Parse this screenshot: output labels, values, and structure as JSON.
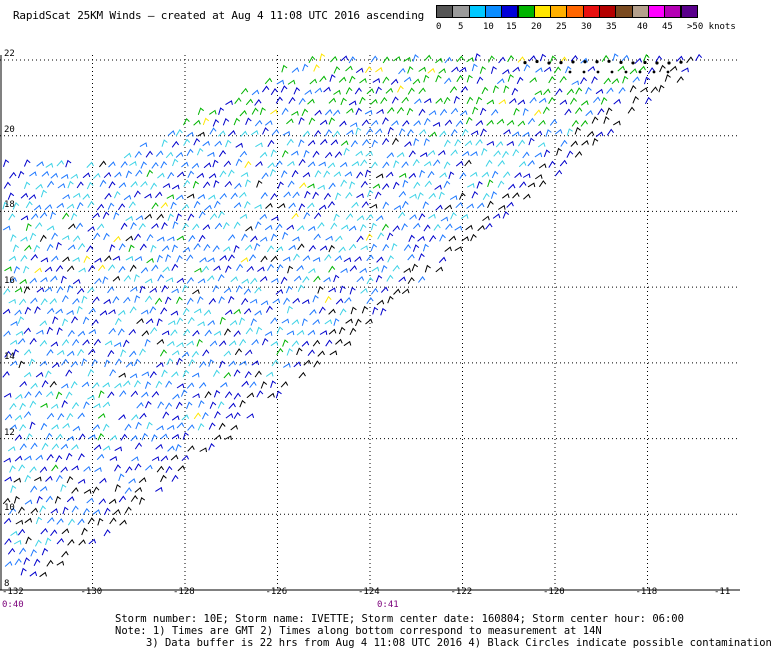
{
  "title": "RapidScat 25KM Winds — created at Aug  4 11:08 UTC 2016 ascending",
  "colorbar": {
    "segments": [
      {
        "color": "#555555"
      },
      {
        "color": "#9a9a9a"
      },
      {
        "color": "#00c8ff"
      },
      {
        "color": "#0a8cff"
      },
      {
        "color": "#0000d8"
      },
      {
        "color": "#00b400"
      },
      {
        "color": "#ffe600"
      },
      {
        "color": "#ffb000"
      },
      {
        "color": "#ff6600"
      },
      {
        "color": "#e81010"
      },
      {
        "color": "#b40000"
      },
      {
        "color": "#7a4a20"
      },
      {
        "color": "#b4a08c"
      },
      {
        "color": "#ff00ff"
      },
      {
        "color": "#b400b4"
      },
      {
        "color": "#5a008c"
      }
    ],
    "labels": [
      "0",
      "5",
      "10",
      "15",
      "20",
      "25",
      "30",
      "35",
      "40",
      "45",
      ">50 knots"
    ]
  },
  "map": {
    "lat_labels": [
      "22",
      "20",
      "18",
      "16",
      "14",
      "12",
      "10",
      "8"
    ],
    "lon_labels": [
      "-132",
      "-130",
      "-128",
      "-126",
      "-124",
      "-122",
      "-120",
      "-118",
      "-11"
    ],
    "time_labels": [
      "0:40",
      "0:41"
    ],
    "lat_range": [
      8,
      22
    ],
    "lon_range": [
      -132,
      -116
    ],
    "grid": true,
    "wind_colors": {
      "slow": "#000000",
      "light": "#3cd2e6",
      "moderate": "#1e78ff",
      "strong": "#0000cc",
      "gale": "#00b400",
      "very_strong": "#ffe600"
    }
  },
  "footer": {
    "line1": "Storm number: 10E;  Storm name: IVETTE;  Storm center date: 160804;  Storm center hour: 06:00",
    "line2": "Note: 1) Times are GMT  2) Times along bottom correspond to measurement at 14N",
    "line3": "3) Data buffer is 22 hrs from Aug  4 11:08 UTC 2016  4) Black Circles indicate possible contamination"
  }
}
